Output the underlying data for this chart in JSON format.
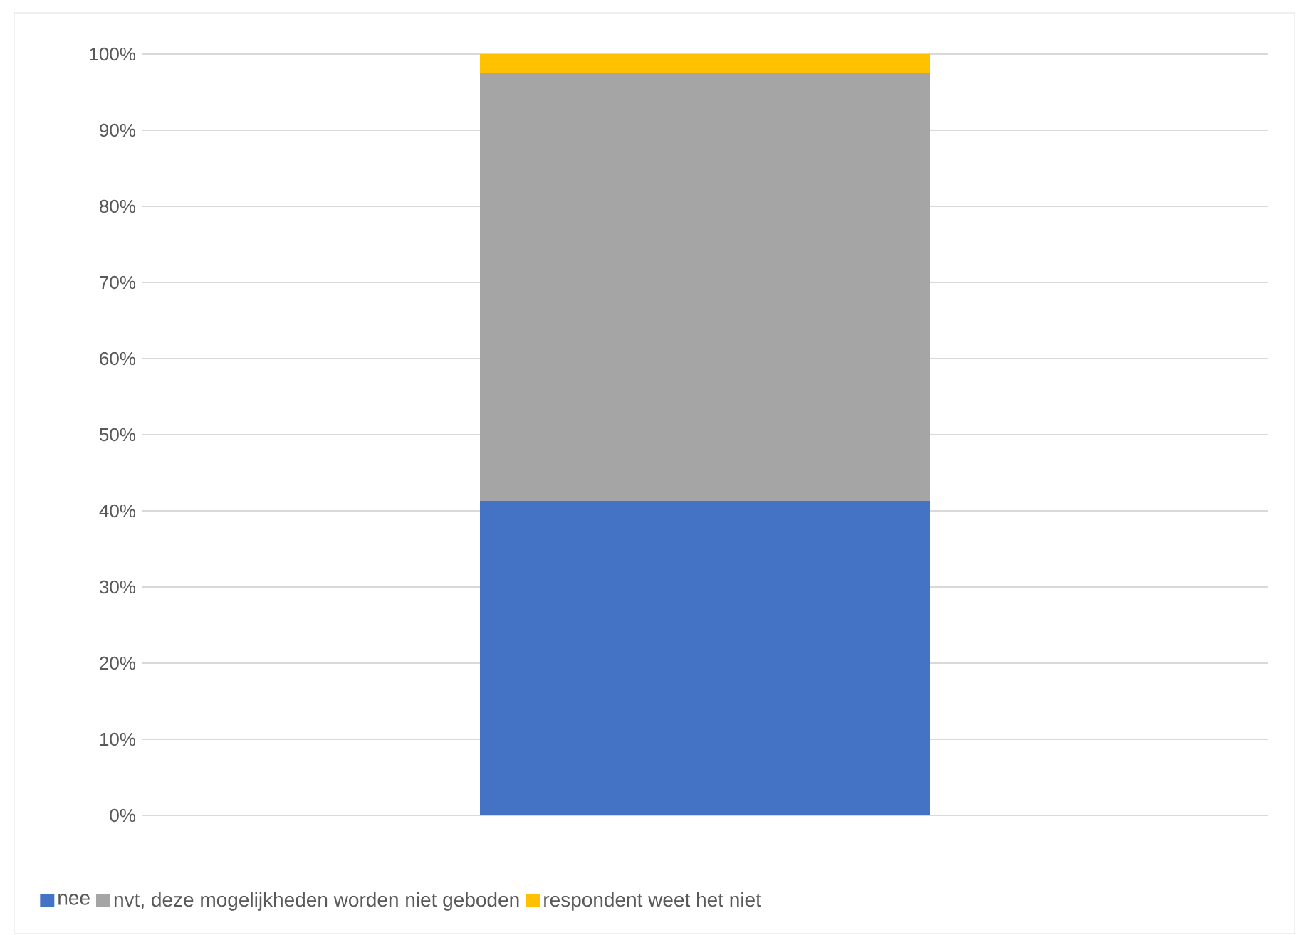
{
  "chart_data": {
    "type": "bar",
    "stacked": true,
    "categories": [
      null
    ],
    "series": [
      {
        "name": "nee",
        "color": "#4472c4",
        "values": [
          41.3
        ]
      },
      {
        "name": "nvt, deze mogelijkheden worden niet geboden",
        "color": "#a5a5a5",
        "values": [
          56.2
        ]
      },
      {
        "name": "respondent weet het niet",
        "color": "#ffc000",
        "values": [
          2.5
        ]
      }
    ],
    "ylim": [
      0,
      100
    ],
    "yticks": [
      {
        "value": 0,
        "label": "0%"
      },
      {
        "value": 10,
        "label": "10%"
      },
      {
        "value": 20,
        "label": "20%"
      },
      {
        "value": 30,
        "label": "30%"
      },
      {
        "value": 40,
        "label": "40%"
      },
      {
        "value": 50,
        "label": "50%"
      },
      {
        "value": 60,
        "label": "60%"
      },
      {
        "value": 70,
        "label": "70%"
      },
      {
        "value": 80,
        "label": "80%"
      },
      {
        "value": 90,
        "label": "90%"
      },
      {
        "value": 100,
        "label": "100%"
      }
    ],
    "grid": "y",
    "legend": "bottom"
  }
}
